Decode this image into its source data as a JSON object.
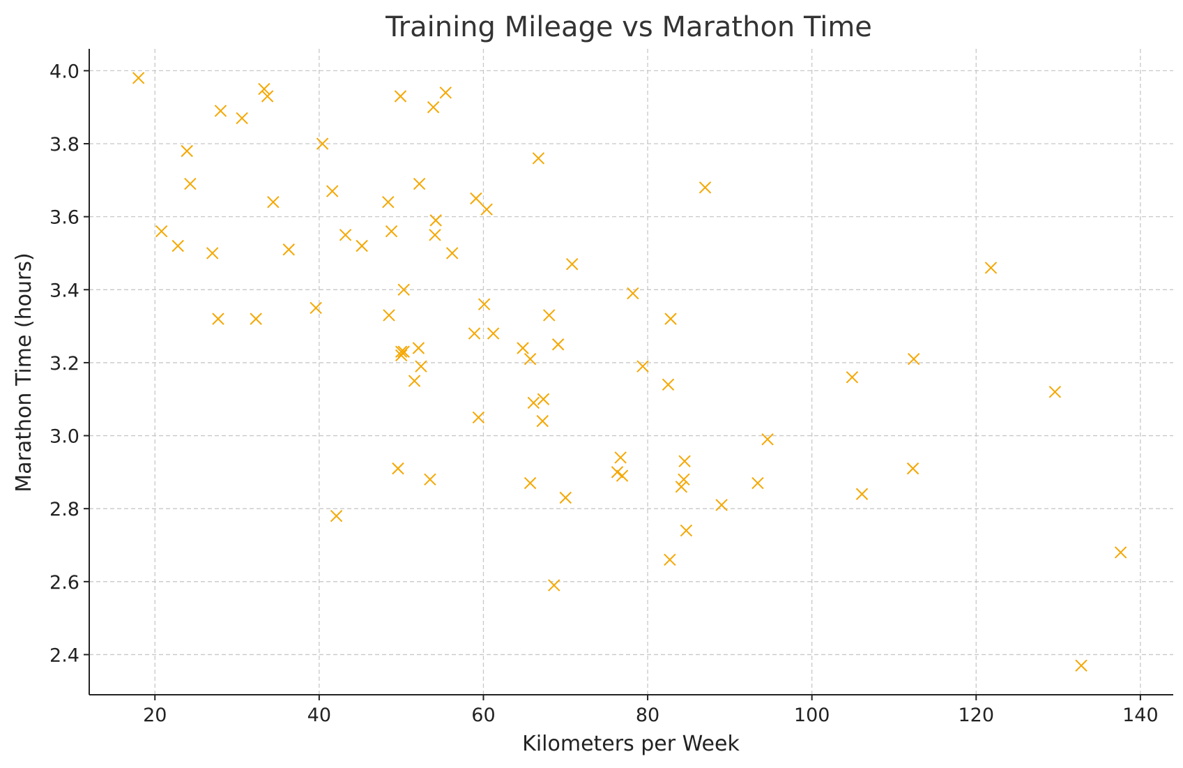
{
  "chart_data": {
    "type": "scatter",
    "title": "Training Mileage vs Marathon Time",
    "xlabel": "Kilometers per Week",
    "ylabel": "Marathon Time (hours)",
    "xlim": [
      12,
      144
    ],
    "ylim": [
      2.29,
      4.06
    ],
    "xticks": [
      20,
      40,
      60,
      80,
      100,
      120,
      140
    ],
    "yticks": [
      2.4,
      2.6,
      2.8,
      3.0,
      3.2,
      3.4,
      3.6,
      3.8,
      4.0
    ],
    "grid": true,
    "marker": "x",
    "color": "#f5a700",
    "points": [
      [
        18.0,
        3.98
      ],
      [
        20.8,
        3.56
      ],
      [
        22.8,
        3.52
      ],
      [
        23.9,
        3.78
      ],
      [
        24.3,
        3.69
      ],
      [
        27.0,
        3.5
      ],
      [
        27.7,
        3.32
      ],
      [
        28.0,
        3.89
      ],
      [
        30.6,
        3.87
      ],
      [
        32.3,
        3.32
      ],
      [
        33.3,
        3.95
      ],
      [
        33.7,
        3.93
      ],
      [
        34.4,
        3.64
      ],
      [
        36.3,
        3.51
      ],
      [
        39.6,
        3.35
      ],
      [
        40.4,
        3.8
      ],
      [
        41.6,
        3.67
      ],
      [
        42.1,
        2.78
      ],
      [
        43.2,
        3.55
      ],
      [
        45.2,
        3.52
      ],
      [
        48.4,
        3.64
      ],
      [
        48.5,
        3.33
      ],
      [
        48.8,
        3.56
      ],
      [
        49.6,
        2.91
      ],
      [
        49.9,
        3.93
      ],
      [
        50.0,
        3.23
      ],
      [
        50.0,
        3.22
      ],
      [
        50.3,
        3.4
      ],
      [
        50.3,
        3.23
      ],
      [
        51.6,
        3.15
      ],
      [
        52.1,
        3.24
      ],
      [
        52.2,
        3.69
      ],
      [
        52.4,
        3.19
      ],
      [
        53.5,
        2.88
      ],
      [
        53.9,
        3.9
      ],
      [
        54.1,
        3.55
      ],
      [
        54.2,
        3.59
      ],
      [
        55.4,
        3.94
      ],
      [
        56.2,
        3.5
      ],
      [
        58.9,
        3.28
      ],
      [
        59.1,
        3.65
      ],
      [
        59.4,
        3.05
      ],
      [
        60.1,
        3.36
      ],
      [
        60.4,
        3.62
      ],
      [
        61.2,
        3.28
      ],
      [
        64.8,
        3.24
      ],
      [
        65.7,
        3.21
      ],
      [
        65.7,
        2.87
      ],
      [
        66.1,
        3.09
      ],
      [
        66.7,
        3.76
      ],
      [
        67.2,
        3.04
      ],
      [
        67.3,
        3.1
      ],
      [
        68.0,
        3.33
      ],
      [
        68.6,
        2.59
      ],
      [
        69.1,
        3.25
      ],
      [
        70.0,
        2.83
      ],
      [
        70.8,
        3.47
      ],
      [
        76.3,
        2.9
      ],
      [
        76.7,
        2.94
      ],
      [
        76.9,
        2.89
      ],
      [
        78.2,
        3.39
      ],
      [
        79.4,
        3.19
      ],
      [
        82.5,
        3.14
      ],
      [
        82.7,
        2.66
      ],
      [
        82.8,
        3.32
      ],
      [
        84.1,
        2.86
      ],
      [
        84.4,
        2.88
      ],
      [
        84.5,
        2.93
      ],
      [
        84.7,
        2.74
      ],
      [
        87.0,
        3.68
      ],
      [
        89.0,
        2.81
      ],
      [
        93.4,
        2.87
      ],
      [
        94.6,
        2.99
      ],
      [
        104.9,
        3.16
      ],
      [
        106.1,
        2.84
      ],
      [
        112.3,
        2.91
      ],
      [
        112.4,
        3.21
      ],
      [
        121.8,
        3.46
      ],
      [
        129.6,
        3.12
      ],
      [
        132.8,
        2.37
      ],
      [
        137.6,
        2.68
      ]
    ]
  }
}
